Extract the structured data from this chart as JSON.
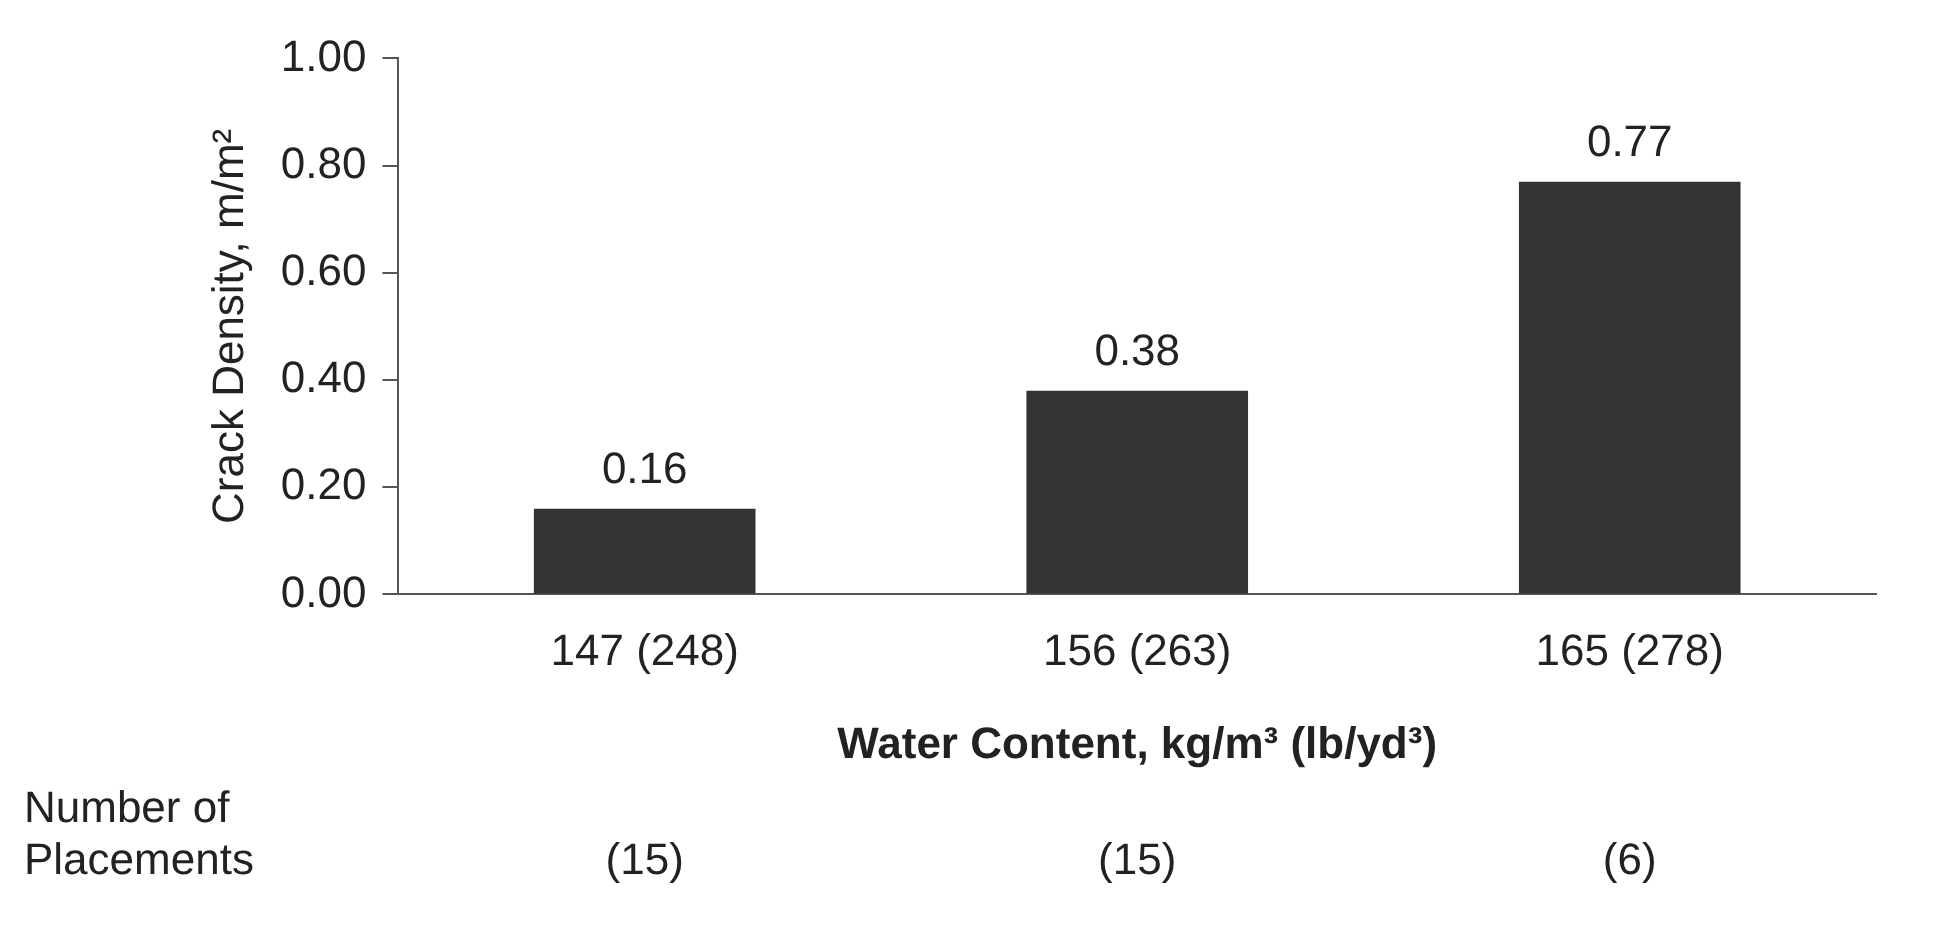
{
  "chart_data": {
    "type": "bar",
    "categories": [
      "147 (248)",
      "156 (263)",
      "165 (278)"
    ],
    "values": [
      0.16,
      0.38,
      0.77
    ],
    "color": "#333333",
    "ylabel": "Crack Density, m/m²",
    "xlabel": "Water Content, kg/m³ (lb/yd³)",
    "ylim": [
      0,
      1
    ],
    "yticks": [
      {
        "value": 0,
        "label": "0.00"
      },
      {
        "value": 0.2,
        "label": "0.20"
      },
      {
        "value": 0.4,
        "label": "0.40"
      },
      {
        "value": 0.6,
        "label": "0.60"
      },
      {
        "value": 0.8,
        "label": "0.80"
      },
      {
        "value": 1,
        "label": "1.00"
      }
    ],
    "grid": false,
    "legend": false,
    "data_labels": true,
    "annotations": [
      "Number of\nPlacements",
      "(15)",
      "(15)",
      "(6)"
    ]
  }
}
